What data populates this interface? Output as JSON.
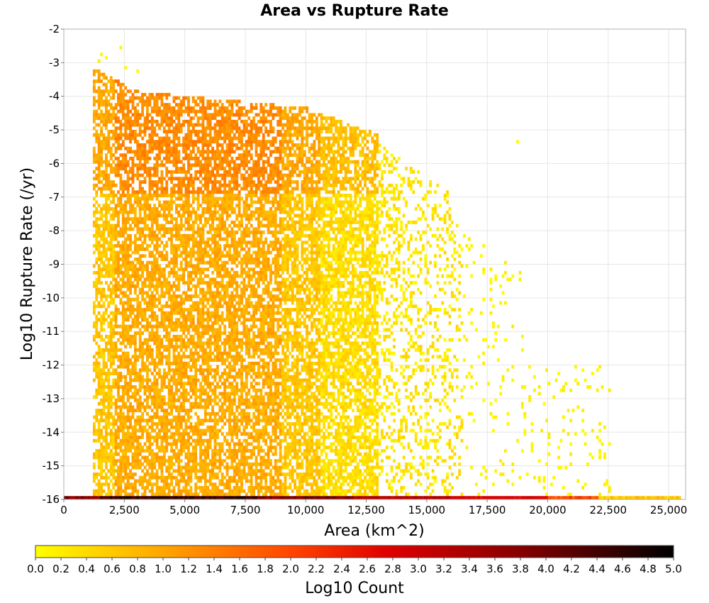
{
  "chart_data": {
    "type": "heatmap",
    "title": "Area vs Rupture Rate",
    "xlabel": "Area (km^2)",
    "ylabel": "Log10 Rupture Rate (/yr)",
    "xlim": [
      0,
      25700
    ],
    "ylim": [
      -16,
      -2
    ],
    "x_ticks": [
      "0",
      "2,500",
      "5,000",
      "7,500",
      "10,000",
      "12,500",
      "15,000",
      "17,500",
      "20,000",
      "22,500",
      "25,000"
    ],
    "x_tick_values": [
      0,
      2500,
      5000,
      7500,
      10000,
      12500,
      15000,
      17500,
      20000,
      22500,
      25000
    ],
    "y_ticks": [
      "-2",
      "-3",
      "-4",
      "-5",
      "-6",
      "-7",
      "-8",
      "-9",
      "-10",
      "-11",
      "-12",
      "-13",
      "-14",
      "-15",
      "-16"
    ],
    "y_tick_values": [
      -2,
      -3,
      -4,
      -5,
      -6,
      -7,
      -8,
      -9,
      -10,
      -11,
      -12,
      -13,
      -14,
      -15,
      -16
    ],
    "grid": true,
    "colorbar": {
      "label": "Log10 Count",
      "range": [
        0,
        5
      ],
      "ticks": [
        "0.0",
        "0.2",
        "0.4",
        "0.6",
        "0.8",
        "1.0",
        "1.2",
        "1.4",
        "1.6",
        "1.8",
        "2.0",
        "2.2",
        "2.4",
        "2.6",
        "2.8",
        "3.0",
        "3.2",
        "3.4",
        "3.6",
        "3.8",
        "4.0",
        "4.2",
        "4.4",
        "4.6",
        "4.8",
        "5.0"
      ],
      "colors": [
        "#ffff00",
        "#ffa500",
        "#ff4500",
        "#e00000",
        "#8b0000",
        "#000000"
      ],
      "placement": "bottom"
    },
    "density_summary": {
      "main_cluster": {
        "area_range": [
          1200,
          13000
        ],
        "log_rate_range": [
          -15.9,
          -3.3
        ],
        "log_count_range": [
          0.2,
          1.5
        ]
      },
      "sparse_tail": {
        "area_range": [
          13000,
          22500
        ],
        "log_rate_range": [
          -15.8,
          -5.4
        ],
        "log_count_range": [
          0.0,
          0.4
        ]
      },
      "bottom_row": {
        "area_range": [
          0,
          25500
        ],
        "log_rate": -16,
        "log_count_range": [
          2.5,
          4.8
        ]
      },
      "outliers": [
        {
          "area": 2300,
          "log_rate": -2.6
        },
        {
          "area": 18700,
          "log_rate": -5.4
        },
        {
          "area": 22000,
          "log_rate": -12.2
        },
        {
          "area": 22500,
          "log_rate": -12.8
        },
        {
          "area": 19800,
          "log_rate": -15.4
        }
      ]
    }
  }
}
